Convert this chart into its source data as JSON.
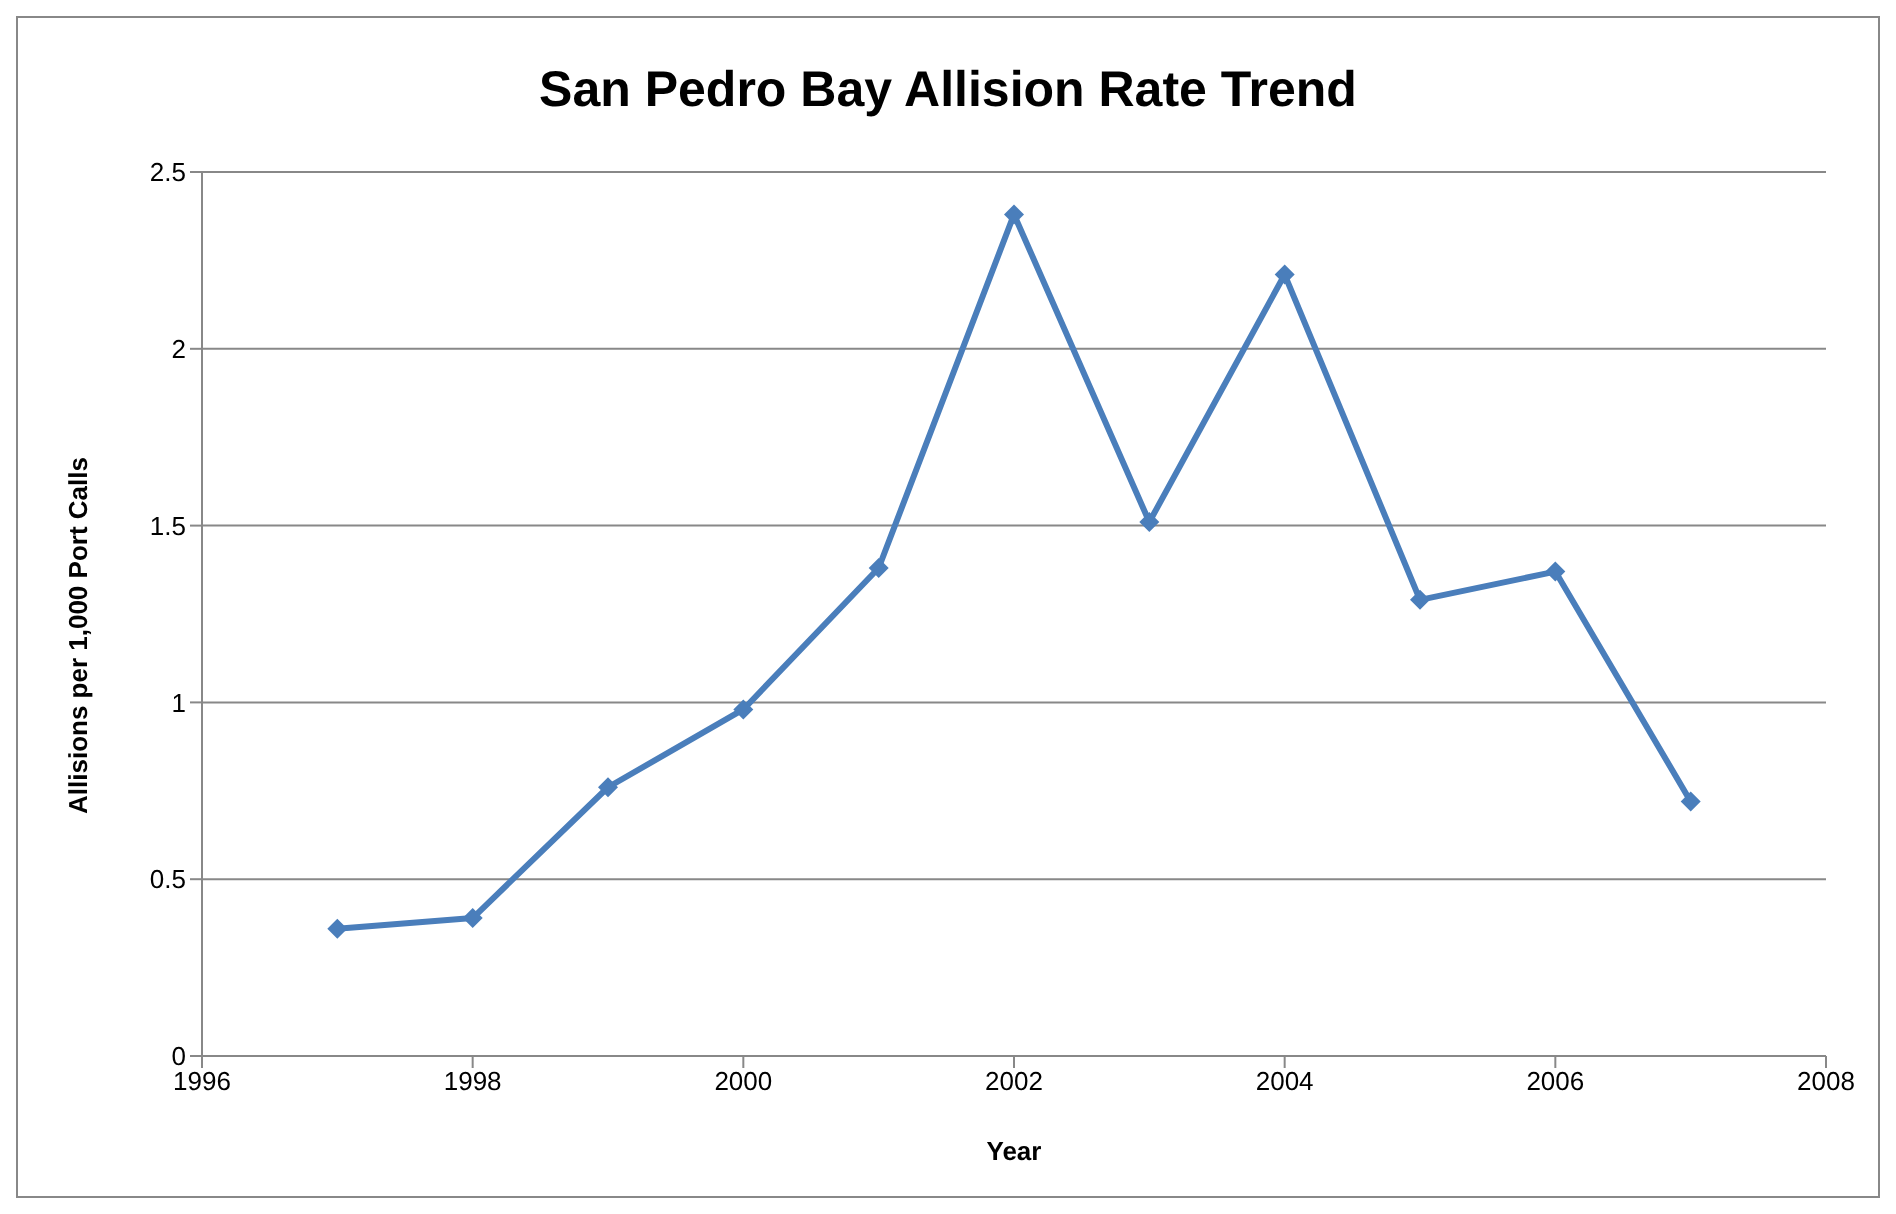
{
  "chart_data": {
    "type": "line",
    "title": "San Pedro Bay Allision Rate Trend",
    "xlabel": "Year",
    "ylabel": "Allisions per 1,000 Port Calls",
    "x": [
      1997,
      1998,
      1999,
      2000,
      2001,
      2002,
      2003,
      2004,
      2005,
      2006,
      2007
    ],
    "series": [
      {
        "color": "#4a7ebb",
        "values": [
          0.36,
          0.39,
          0.76,
          0.98,
          1.38,
          2.38,
          1.51,
          2.21,
          1.29,
          1.37,
          0.72
        ]
      }
    ],
    "xlim": [
      1996,
      2008
    ],
    "xticks": [
      1996,
      1998,
      2000,
      2002,
      2004,
      2006,
      2008
    ],
    "ylim": [
      0,
      2.5
    ],
    "yticks": [
      0,
      0.5,
      1,
      1.5,
      2,
      2.5
    ],
    "grid": "y",
    "legend": false,
    "marker": "diamond",
    "line_style": "solid"
  }
}
